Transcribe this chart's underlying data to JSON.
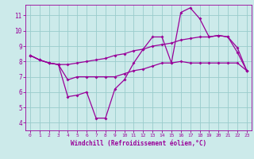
{
  "xlabel": "Windchill (Refroidissement éolien,°C)",
  "xlim": [
    -0.5,
    23.5
  ],
  "ylim": [
    3.5,
    11.7
  ],
  "yticks": [
    4,
    5,
    6,
    7,
    8,
    9,
    10,
    11
  ],
  "xticks": [
    0,
    1,
    2,
    3,
    4,
    5,
    6,
    7,
    8,
    9,
    10,
    11,
    12,
    13,
    14,
    15,
    16,
    17,
    18,
    19,
    20,
    21,
    22,
    23
  ],
  "background_color": "#cceaea",
  "line_color": "#990099",
  "grid_color": "#99cccc",
  "line1": [
    8.4,
    8.1,
    7.9,
    7.8,
    5.7,
    5.8,
    6.0,
    4.3,
    4.3,
    6.2,
    6.8,
    7.9,
    8.8,
    9.6,
    9.6,
    7.9,
    11.2,
    11.5,
    10.8,
    9.6,
    9.7,
    9.6,
    8.6,
    7.4
  ],
  "line2": [
    8.4,
    8.1,
    7.9,
    7.8,
    6.8,
    7.0,
    7.0,
    7.0,
    7.0,
    7.0,
    7.2,
    7.4,
    7.5,
    7.7,
    7.9,
    7.9,
    8.0,
    7.9,
    7.9,
    7.9,
    7.9,
    7.9,
    7.9,
    7.4
  ],
  "line3": [
    8.4,
    8.1,
    7.9,
    7.8,
    7.8,
    7.9,
    8.0,
    8.1,
    8.2,
    8.4,
    8.5,
    8.7,
    8.8,
    9.0,
    9.1,
    9.2,
    9.4,
    9.5,
    9.6,
    9.6,
    9.7,
    9.6,
    8.9,
    7.4
  ],
  "xlabel_fontsize": 5.5,
  "tick_fontsize": 5.5,
  "marker_size": 2.0,
  "line_width": 0.9
}
